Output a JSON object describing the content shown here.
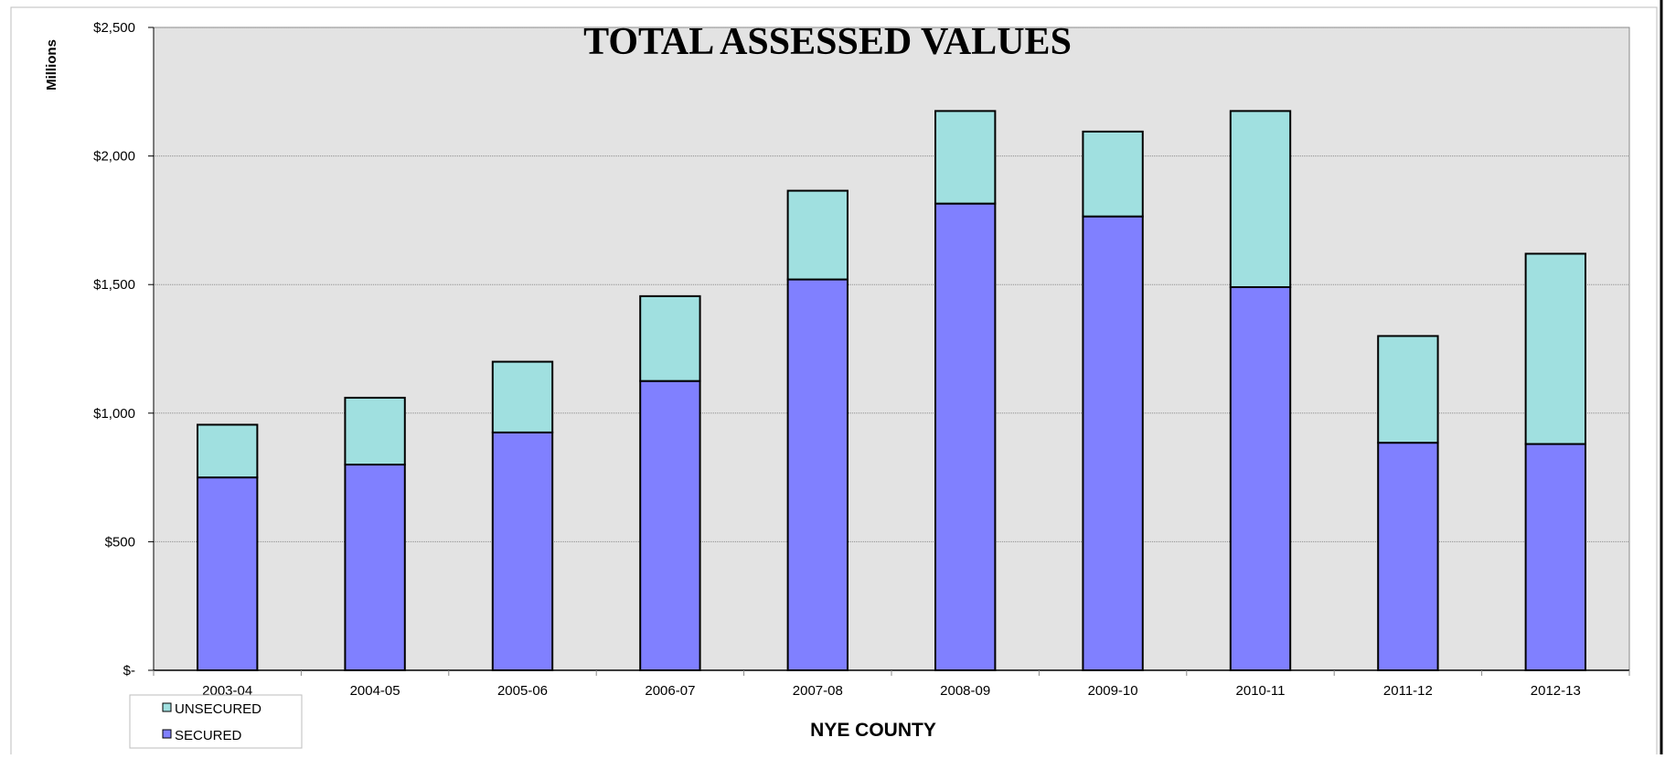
{
  "chart_data": {
    "type": "bar",
    "stacked": true,
    "title": "TOTAL ASSESSED VALUES",
    "xlabel": "NYE COUNTY",
    "ylabel": "Millions",
    "ylim": [
      0,
      2500
    ],
    "yticks": [
      0,
      500,
      1000,
      1500,
      2000,
      2500
    ],
    "ytick_labels": [
      "$-",
      "$500",
      "$1,000",
      "$1,500",
      "$2,000",
      "$2,500"
    ],
    "categories": [
      "2003-04",
      "2004-05",
      "2005-06",
      "2006-07",
      "2007-08",
      "2008-09",
      "2009-10",
      "2010-11",
      "2011-12",
      "2012-13"
    ],
    "series": [
      {
        "name": "SECURED",
        "color": "#8080ff",
        "values": [
          750,
          800,
          925,
          1125,
          1520,
          1815,
          1765,
          1490,
          885,
          880
        ]
      },
      {
        "name": "UNSECURED",
        "color": "#a0e0e0",
        "values": [
          205,
          260,
          275,
          330,
          345,
          360,
          330,
          685,
          415,
          740
        ]
      }
    ],
    "legend": {
      "placement": "bottom-left",
      "order": [
        "UNSECURED",
        "SECURED"
      ]
    },
    "grid": true,
    "colors": {
      "plot_background": "#e3e3e3",
      "gridline": "#8c8c8c",
      "bar_outline": "#000000"
    }
  }
}
